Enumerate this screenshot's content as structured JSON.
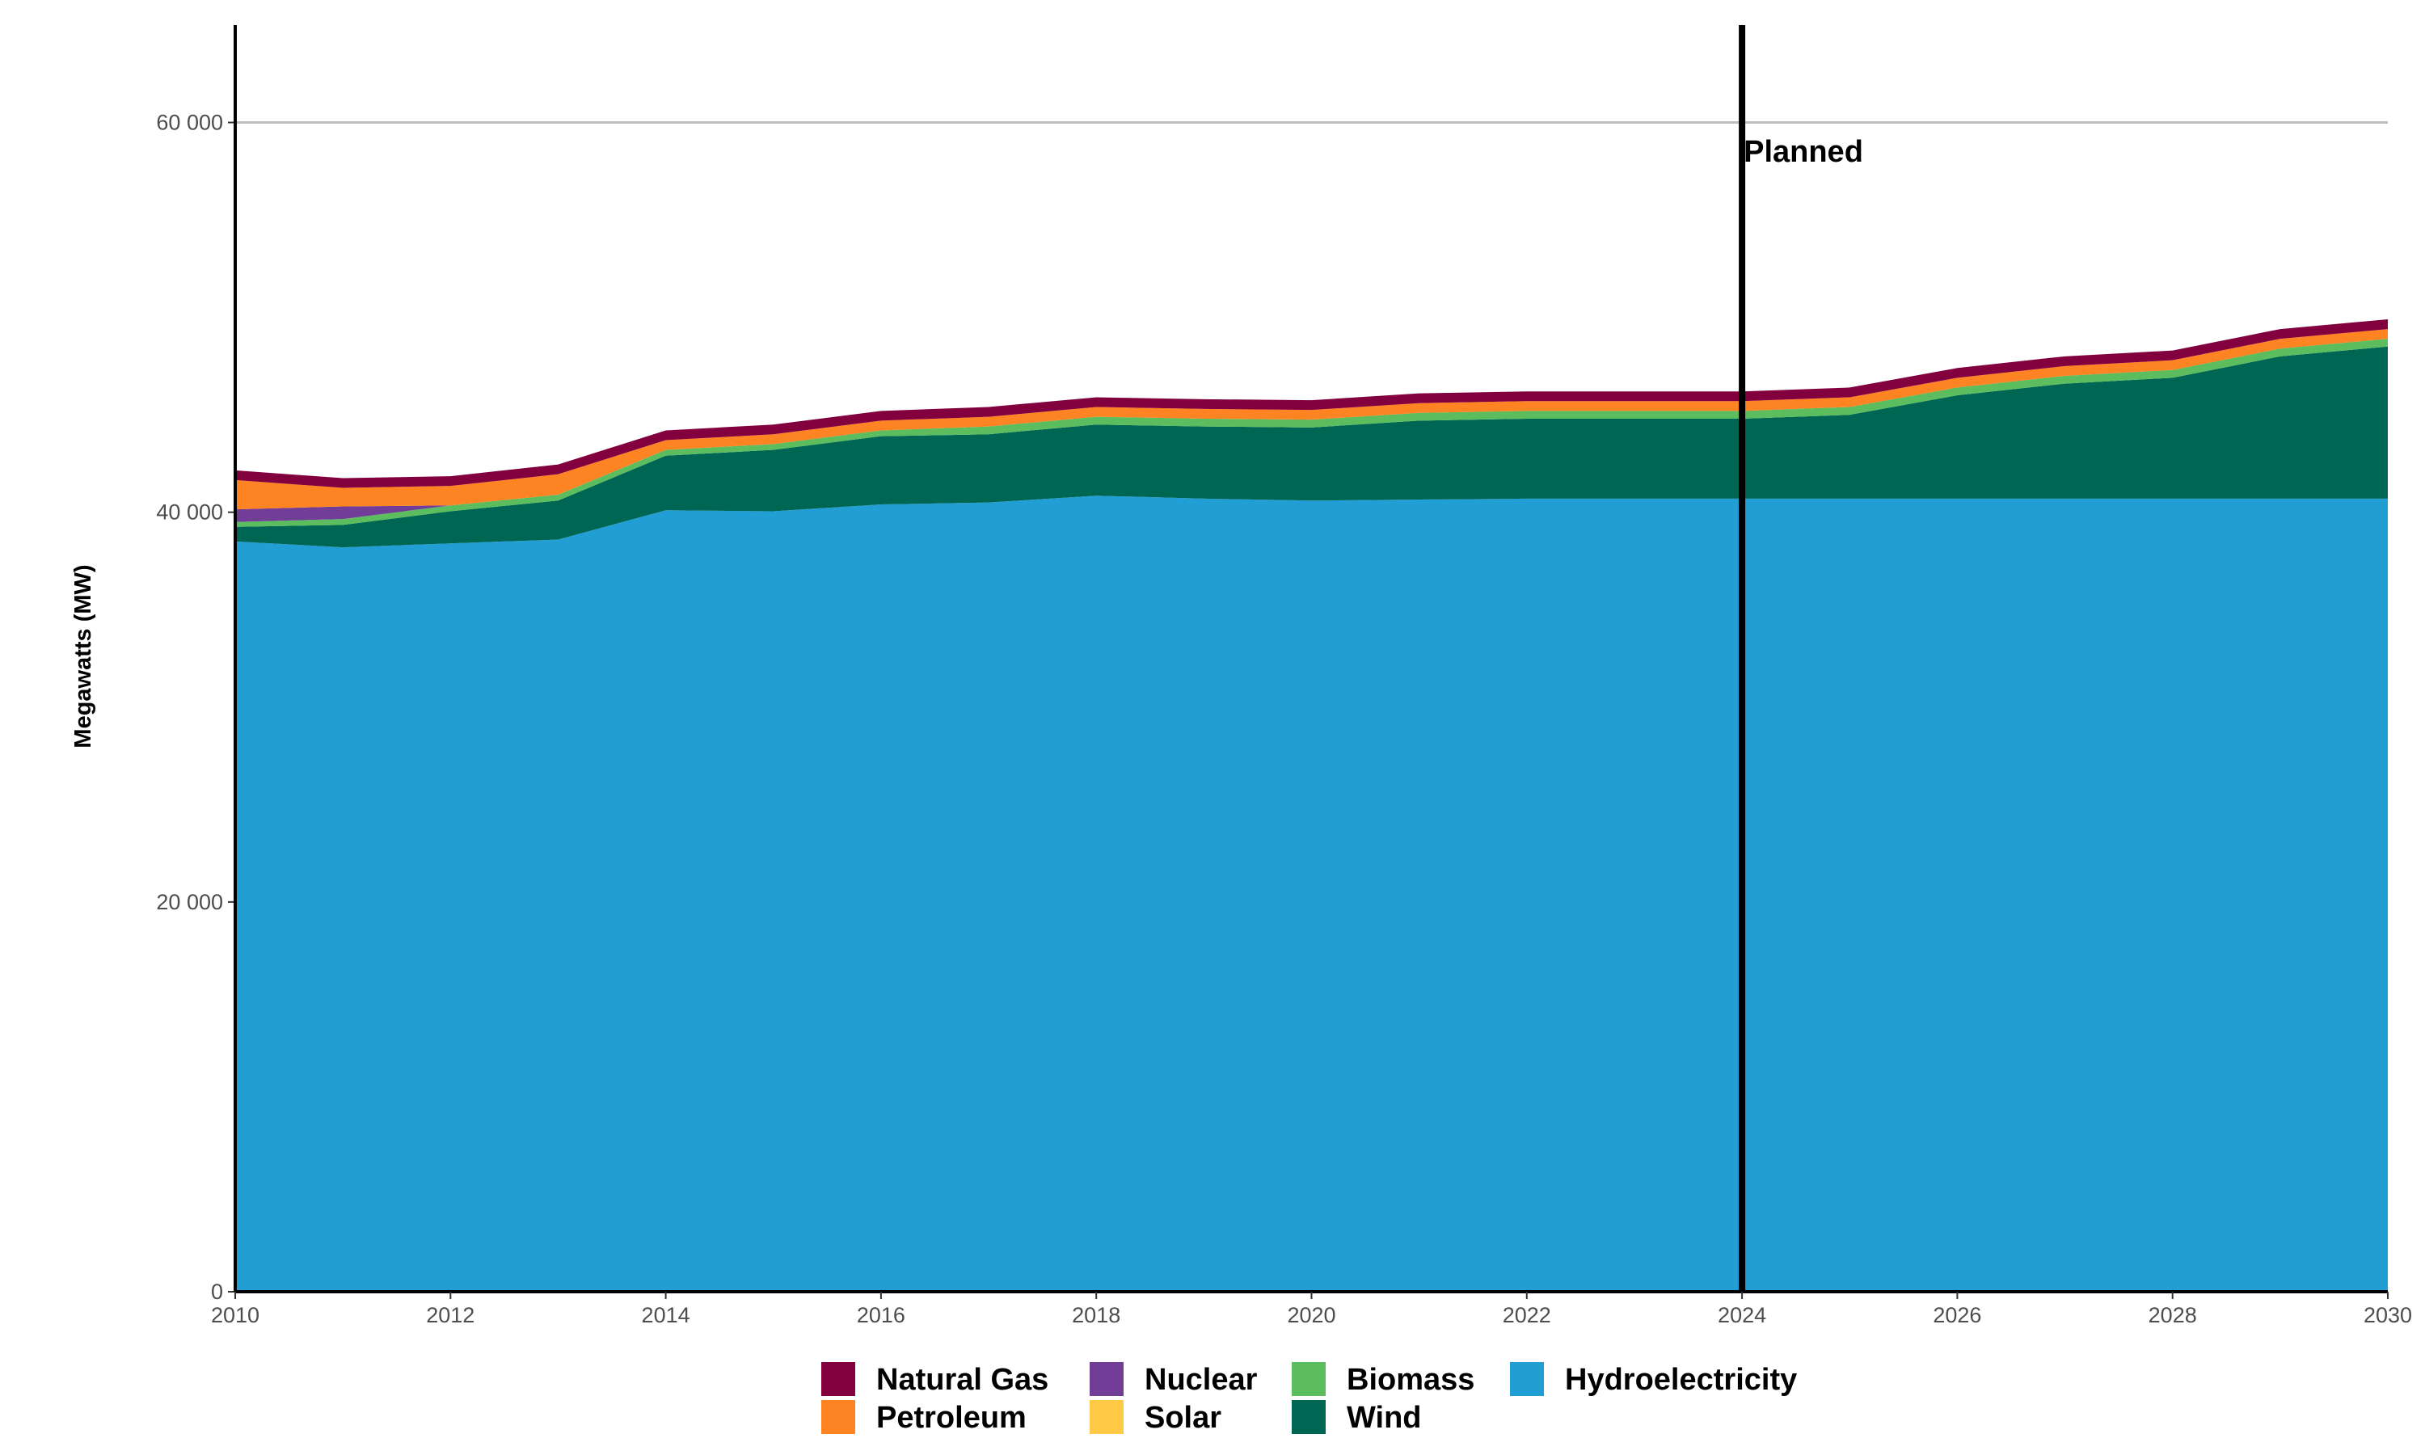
{
  "chart_data": {
    "type": "area",
    "stacked": true,
    "y_label": "Megawatts (MW)",
    "x": [
      2010,
      2011,
      2012,
      2013,
      2014,
      2015,
      2016,
      2017,
      2018,
      2019,
      2020,
      2021,
      2022,
      2023,
      2024,
      2025,
      2026,
      2027,
      2028,
      2029,
      2030
    ],
    "xlim": [
      2010,
      2030
    ],
    "xticks": [
      2010,
      2012,
      2014,
      2016,
      2018,
      2020,
      2022,
      2024,
      2026,
      2028,
      2030
    ],
    "ylim": [
      0,
      65000
    ],
    "yticks": [
      0,
      {
        "value": 20000,
        "label": "20 000"
      },
      {
        "value": 40000,
        "label": "40 000"
      },
      {
        "value": 60000,
        "label": "60 000"
      }
    ],
    "grid": true,
    "legend_position": "bottom",
    "annotation": {
      "x": 2024,
      "label": "Planned"
    },
    "series": [
      {
        "name": "Hydroelectricity",
        "color": "#219ed4",
        "values": [
          38500,
          38200,
          38400,
          38600,
          40100,
          40050,
          40400,
          40500,
          40850,
          40700,
          40600,
          40650,
          40700,
          40700,
          40700,
          40700,
          40700,
          40700,
          40700,
          40700,
          40700
        ]
      },
      {
        "name": "Wind",
        "color": "#006654",
        "values": [
          750,
          1150,
          1650,
          2000,
          2800,
          3150,
          3500,
          3500,
          3650,
          3700,
          3750,
          4050,
          4100,
          4100,
          4100,
          4300,
          5300,
          5900,
          6200,
          7300,
          7800
        ]
      },
      {
        "name": "Biomass",
        "color": "#5bbd5e",
        "values": [
          250,
          300,
          300,
          300,
          300,
          300,
          300,
          400,
          400,
          400,
          400,
          400,
          400,
          400,
          400,
          400,
          400,
          400,
          400,
          400,
          400
        ]
      },
      {
        "name": "Solar",
        "color": "#ffc845",
        "values": [
          0,
          0,
          0,
          0,
          0,
          0,
          0,
          0,
          0,
          0,
          0,
          0,
          0,
          0,
          0,
          0,
          0,
          0,
          0,
          0,
          0
        ]
      },
      {
        "name": "Nuclear",
        "color": "#723d96",
        "values": [
          650,
          650,
          0,
          0,
          0,
          0,
          0,
          0,
          0,
          0,
          0,
          0,
          0,
          0,
          0,
          0,
          0,
          0,
          0,
          0,
          0
        ]
      },
      {
        "name": "Petroleum",
        "color": "#fe8323",
        "values": [
          1500,
          950,
          1000,
          1050,
          500,
          500,
          500,
          500,
          500,
          500,
          500,
          500,
          500,
          500,
          500,
          500,
          500,
          500,
          500,
          500,
          500
        ]
      },
      {
        "name": "Natural Gas",
        "color": "#83003f",
        "values": [
          500,
          500,
          500,
          500,
          500,
          500,
          500,
          500,
          500,
          500,
          500,
          500,
          500,
          500,
          500,
          500,
          500,
          500,
          500,
          500,
          500
        ]
      }
    ]
  }
}
